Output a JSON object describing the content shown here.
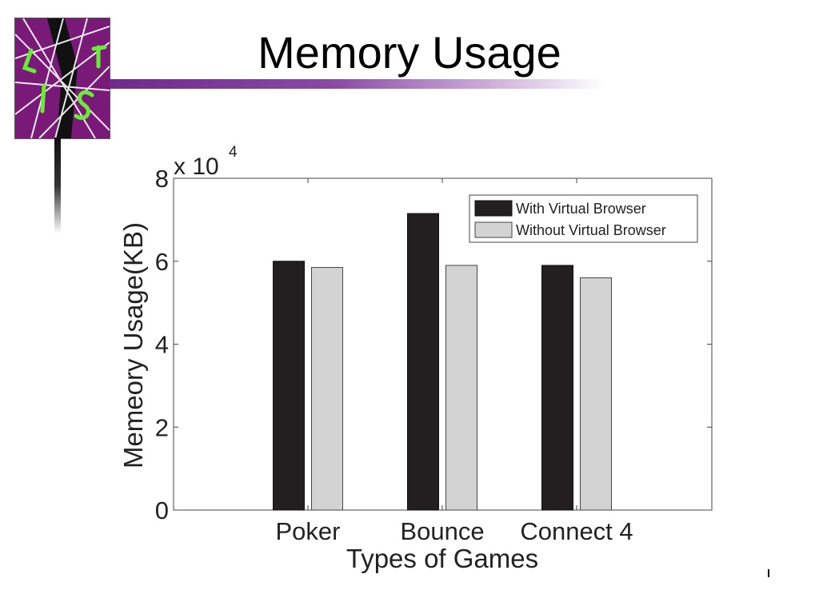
{
  "slide": {
    "title": "Memory Usage"
  },
  "icons": {
    "logo": "lsi-web-logo-icon"
  },
  "colors": {
    "title_rule": "#6f2a8c",
    "logo_bg": "#7a1a78",
    "series_with": "#231f20",
    "series_without": "#d3d3d3"
  },
  "chart_data": {
    "type": "bar",
    "xlabel": "Types of Games",
    "ylabel": "Memeory Usage(KB)",
    "y_multiplier": "x 10",
    "y_multiplier_exponent": "4",
    "categories": [
      "Poker",
      "Bounce",
      "Connect 4"
    ],
    "series": [
      {
        "name": "With Virtual Browser",
        "values": [
          60000,
          71500,
          59000
        ]
      },
      {
        "name": "Without Virtual Browser",
        "values": [
          58500,
          59000,
          56000
        ]
      }
    ],
    "ylim": [
      0,
      80000
    ],
    "yticks": [
      0,
      20000,
      40000,
      60000,
      80000
    ],
    "ytick_labels": [
      "0",
      "2",
      "4",
      "6",
      "8"
    ],
    "legend_position": "top-right",
    "grid": false
  }
}
